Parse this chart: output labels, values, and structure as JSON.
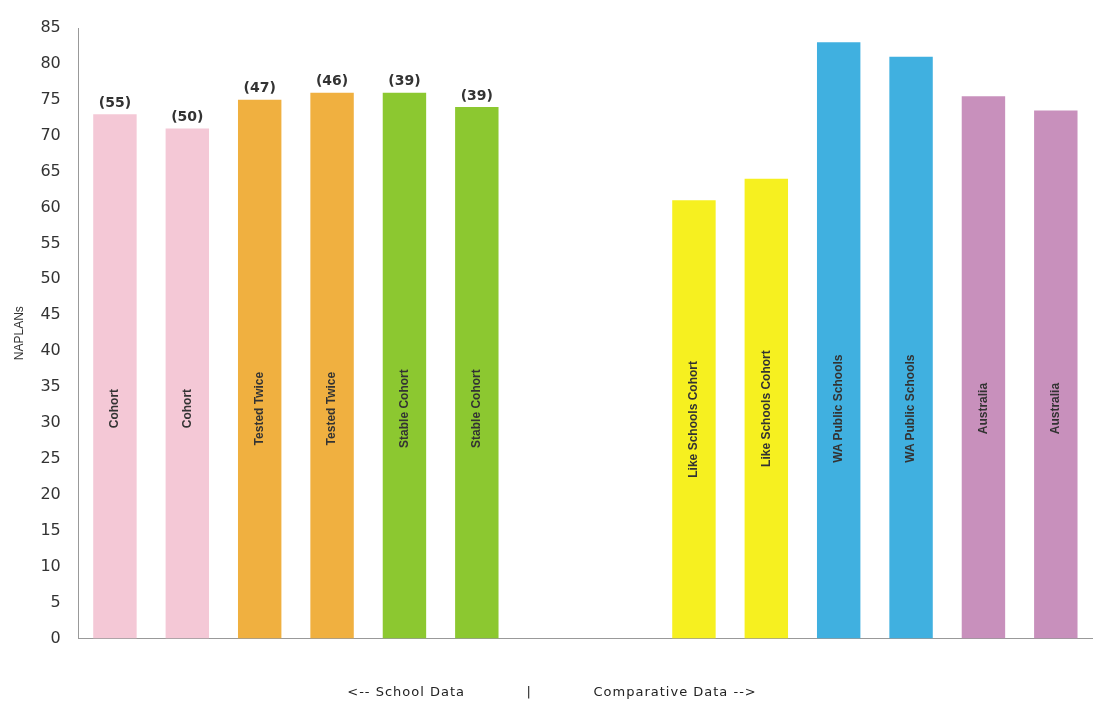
{
  "chart_data": {
    "type": "bar",
    "ylabel": "NAPLANs",
    "xlabel": "<-- School Data            |            Comparative Data -->",
    "categories": [
      "Cohort",
      "Cohort",
      "Tested Twice",
      "Tested Twice",
      "Stable Cohort",
      "Stable Cohort",
      null,
      null,
      "Like Schools Cohort",
      "Like Schools Cohort",
      "WA Public Schools",
      "WA Public Schools",
      "Australia",
      "Australia"
    ],
    "values": [
      73,
      71,
      75,
      76,
      76,
      74,
      null,
      null,
      61,
      64,
      83,
      81,
      75.5,
      73.5
    ],
    "colors": [
      "#f4c8d6",
      "#f4c8d6",
      "#f0b040",
      "#f0b040",
      "#8cc830",
      "#8cc830",
      "#ffffff",
      "#ffffff",
      "#f6f020",
      "#f6f020",
      "#40b0e0",
      "#40b0e0",
      "#c890bc",
      "#c890bc"
    ],
    "ylim": [
      0,
      85
    ],
    "yticks": [
      0,
      5,
      10,
      15,
      20,
      25,
      30,
      35,
      40,
      45,
      50,
      55,
      60,
      65,
      70,
      75,
      80,
      85
    ],
    "grid": false,
    "legend": false,
    "annotations": [
      "(55)",
      "(50)",
      "(47)",
      "(46)",
      "(39)",
      "(39)"
    ]
  }
}
